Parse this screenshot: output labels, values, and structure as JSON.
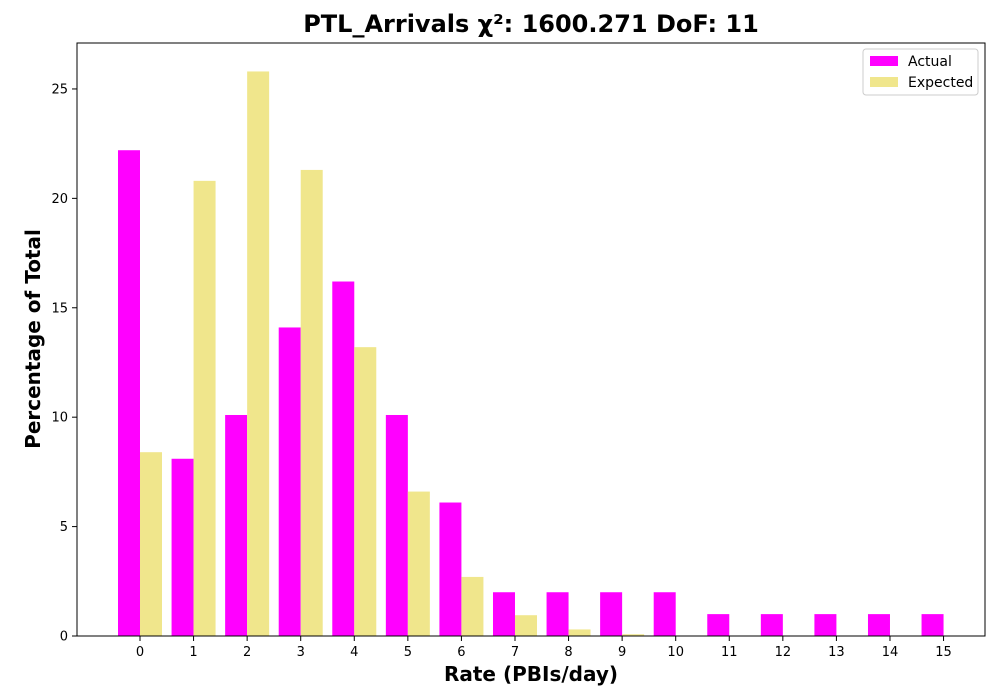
{
  "chart_data": {
    "type": "bar",
    "title": "PTL_Arrivals χ²: 1600.271 DoF: 11",
    "xlabel": "Rate (PBIs/day)",
    "ylabel": "Percentage of Total",
    "categories": [
      "0",
      "1",
      "2",
      "3",
      "4",
      "5",
      "6",
      "7",
      "8",
      "9",
      "10",
      "11",
      "12",
      "13",
      "14",
      "15"
    ],
    "series": [
      {
        "name": "Actual",
        "color": "#ff00ff",
        "values": [
          22.2,
          8.1,
          10.1,
          14.1,
          16.2,
          10.1,
          6.1,
          2.0,
          2.0,
          2.0,
          2.0,
          1.0,
          1.0,
          1.0,
          1.0,
          1.0
        ]
      },
      {
        "name": "Expected",
        "color": "#f0e68c",
        "values": [
          8.4,
          20.8,
          25.8,
          21.3,
          13.2,
          6.6,
          2.7,
          0.95,
          0.3,
          0.08,
          0.02,
          0,
          0,
          0,
          0,
          0
        ]
      }
    ],
    "ylim": [
      0,
      27.1
    ],
    "yticks": [
      0,
      5,
      10,
      15,
      20,
      25
    ],
    "grid": false,
    "legend_position": "top-right"
  }
}
